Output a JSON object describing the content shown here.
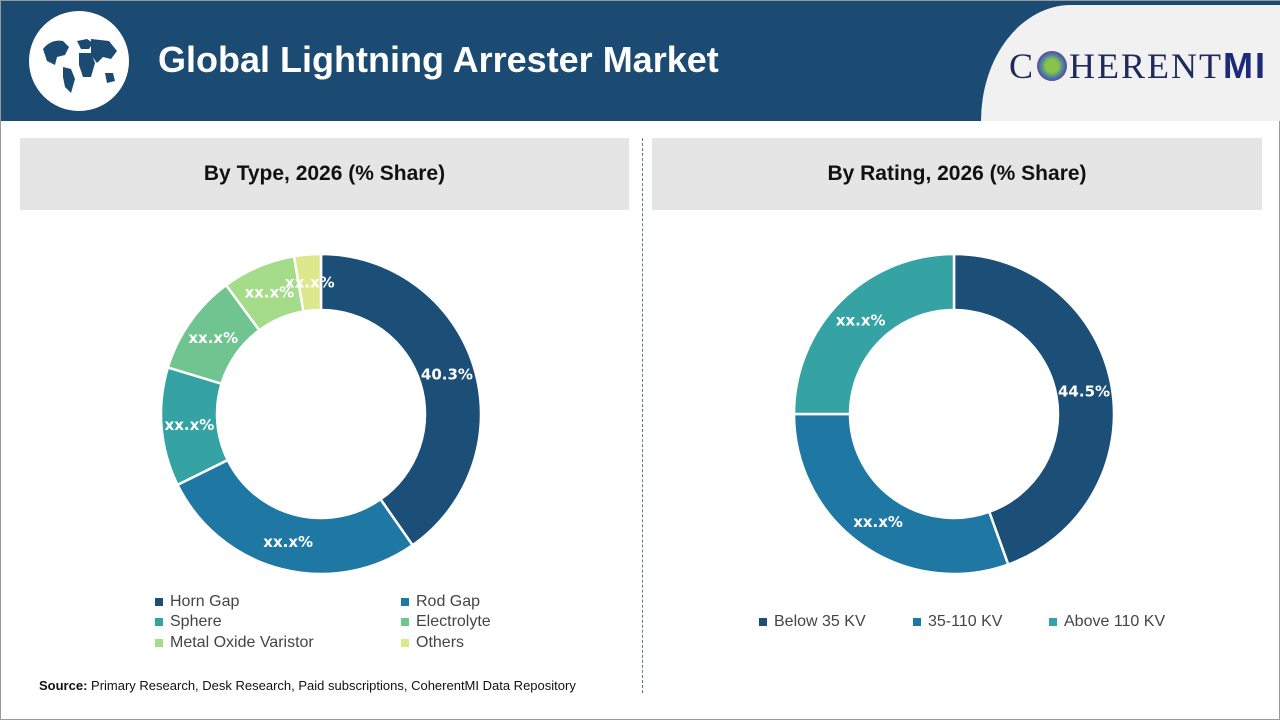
{
  "header": {
    "title": "Global Lightning Arrester Market",
    "brand_prefix": "C",
    "brand_middle": "HERENT",
    "brand_suffix": "MI"
  },
  "source": {
    "label": "Source:",
    "text": " Primary Research, Desk Research, Paid subscriptions, CoherentMI Data Repository"
  },
  "chart_data": [
    {
      "type": "pie",
      "title": "By Type, 2026 (% Share)",
      "donut": true,
      "categories": [
        "Horn Gap",
        "Rod Gap",
        "Sphere",
        "Electrolyte",
        "Metal Oxide Varistor",
        "Others"
      ],
      "values": [
        40.3,
        27.4,
        12.0,
        10.2,
        7.4,
        2.7
      ],
      "labels": [
        "40.3%",
        "xx.x%",
        "xx.x%",
        "xx.x%",
        "xx.x%",
        "xx.x%"
      ],
      "colors": [
        "#1b4f78",
        "#1f77a4",
        "#35a3a3",
        "#6fc490",
        "#a4dc8a",
        "#dbe98c"
      ],
      "legend": "bottom"
    },
    {
      "type": "pie",
      "title": "By Rating, 2026 (% Share)",
      "donut": true,
      "categories": [
        "Below 35 KV",
        "35-110 KV",
        "Above 110 KV"
      ],
      "values": [
        44.5,
        30.5,
        25.0
      ],
      "labels": [
        "44.5%",
        "xx.x%",
        "xx.x%"
      ],
      "colors": [
        "#1b4f78",
        "#1f77a4",
        "#35a3a3"
      ],
      "legend": "bottom"
    }
  ]
}
